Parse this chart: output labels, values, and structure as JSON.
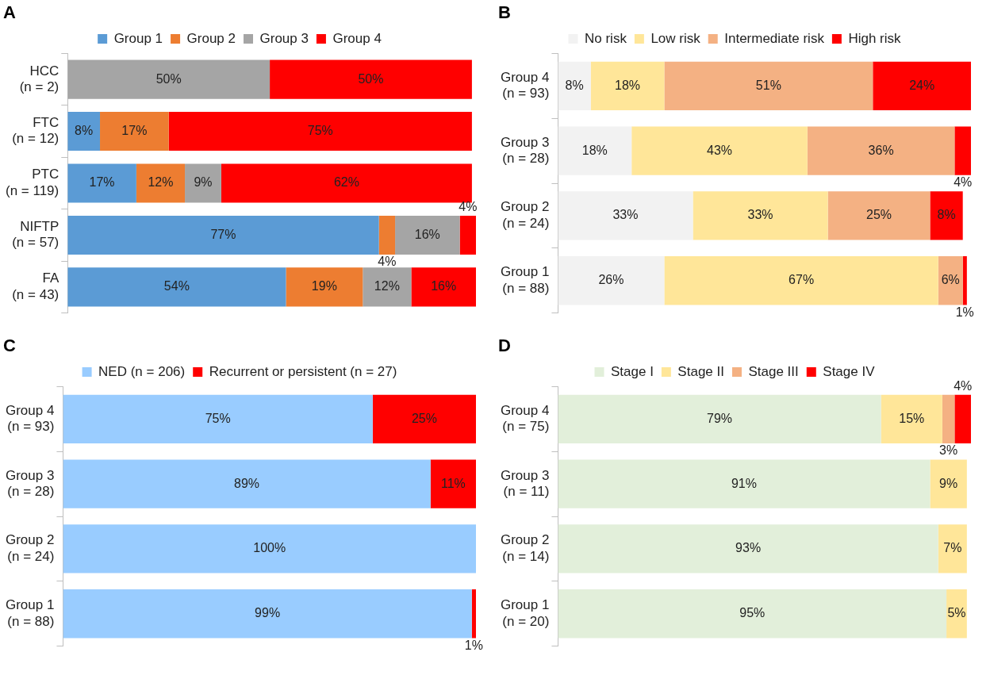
{
  "chart_data": [
    {
      "type": "bar",
      "title": "A",
      "orientation": "horizontal",
      "stacked": true,
      "legend": "top",
      "grid": false,
      "tick_labels": "y",
      "categories": [
        "HCC\n(n = 2)",
        "FTC\n(n = 12)",
        "PTC\n(n = 119)",
        "NIFTP\n(n = 57)",
        "FA\n(n = 43)"
      ],
      "series": [
        {
          "name": "Group 1",
          "color": "#5b9bd5",
          "values": [
            null,
            8,
            17,
            77,
            54
          ],
          "value_labels": [
            null,
            "8%",
            "17%",
            "77%",
            "54%"
          ]
        },
        {
          "name": "Group 2",
          "color": "#ed7d31",
          "values": [
            null,
            17,
            12,
            4,
            19
          ],
          "value_labels": [
            null,
            "17%",
            "12%",
            "4%",
            "19%"
          ]
        },
        {
          "name": "Group 3",
          "color": "#a5a5a5",
          "values": [
            50,
            null,
            9,
            16,
            12
          ],
          "value_labels": [
            "50%",
            null,
            "9%",
            "16%",
            "12%"
          ]
        },
        {
          "name": "Group 4",
          "color": "#ff0000",
          "values": [
            50,
            75,
            62,
            4,
            16
          ],
          "value_labels": [
            "50%",
            "75%",
            "62%",
            "4%",
            "16%"
          ]
        }
      ]
    },
    {
      "type": "bar",
      "title": "B",
      "orientation": "horizontal",
      "stacked": true,
      "legend": "top",
      "grid": false,
      "tick_labels": "y",
      "categories": [
        "Group 4\n(n = 93)",
        "Group 3\n(n = 28)",
        "Group 2\n(n = 24)",
        "Group 1\n(n = 88)"
      ],
      "series": [
        {
          "name": "No risk",
          "color": "#f2f2f2",
          "values": [
            8,
            18,
            33,
            26
          ],
          "value_labels": [
            "8%",
            "18%",
            "33%",
            "26%"
          ]
        },
        {
          "name": "Low risk",
          "color": "#ffe699",
          "values": [
            18,
            43,
            33,
            67
          ],
          "value_labels": [
            "18%",
            "43%",
            "33%",
            "67%"
          ]
        },
        {
          "name": "Intermediate risk",
          "color": "#f4b183",
          "values": [
            51,
            36,
            25,
            6
          ],
          "value_labels": [
            "51%",
            "36%",
            "25%",
            "6%"
          ]
        },
        {
          "name": "High risk",
          "color": "#ff0000",
          "values": [
            24,
            4,
            8,
            1
          ],
          "value_labels": [
            "24%",
            "4%",
            "8%",
            "1%"
          ]
        }
      ]
    },
    {
      "type": "bar",
      "title": "C",
      "orientation": "horizontal",
      "stacked": true,
      "legend": "top",
      "grid": false,
      "tick_labels": "y",
      "categories": [
        "Group 4\n(n = 93)",
        "Group 3\n(n = 28)",
        "Group 2\n(n = 24)",
        "Group 1\n(n = 88)"
      ],
      "series": [
        {
          "name": "NED (n = 206)",
          "color": "#99ccff",
          "values": [
            75,
            89,
            100,
            99
          ],
          "value_labels": [
            "75%",
            "89%",
            "100%",
            "99%"
          ]
        },
        {
          "name": "Recurrent or persistent (n = 27)",
          "color": "#ff0000",
          "values": [
            25,
            11,
            null,
            1
          ],
          "value_labels": [
            "25%",
            "11%",
            null,
            "1%"
          ]
        }
      ]
    },
    {
      "type": "bar",
      "title": "D",
      "orientation": "horizontal",
      "stacked": true,
      "legend": "top",
      "grid": false,
      "tick_labels": "y",
      "categories": [
        "Group 4\n(n = 75)",
        "Group 3\n(n = 11)",
        "Group 2\n(n = 14)",
        "Group 1\n(n = 20)"
      ],
      "series": [
        {
          "name": "Stage I",
          "color": "#e2efda",
          "values": [
            79,
            91,
            93,
            95
          ],
          "value_labels": [
            "79%",
            "91%",
            "93%",
            "95%"
          ]
        },
        {
          "name": "Stage II",
          "color": "#ffe699",
          "values": [
            15,
            9,
            7,
            5
          ],
          "value_labels": [
            "15%",
            "9%",
            "7%",
            "5%"
          ]
        },
        {
          "name": "Stage III",
          "color": "#f4b183",
          "values": [
            3,
            null,
            null,
            null
          ],
          "value_labels": [
            "3%",
            null,
            null,
            null
          ]
        },
        {
          "name": "Stage IV",
          "color": "#ff0000",
          "values": [
            4,
            null,
            null,
            null
          ],
          "value_labels": [
            "4%",
            null,
            null,
            null
          ]
        }
      ]
    }
  ]
}
